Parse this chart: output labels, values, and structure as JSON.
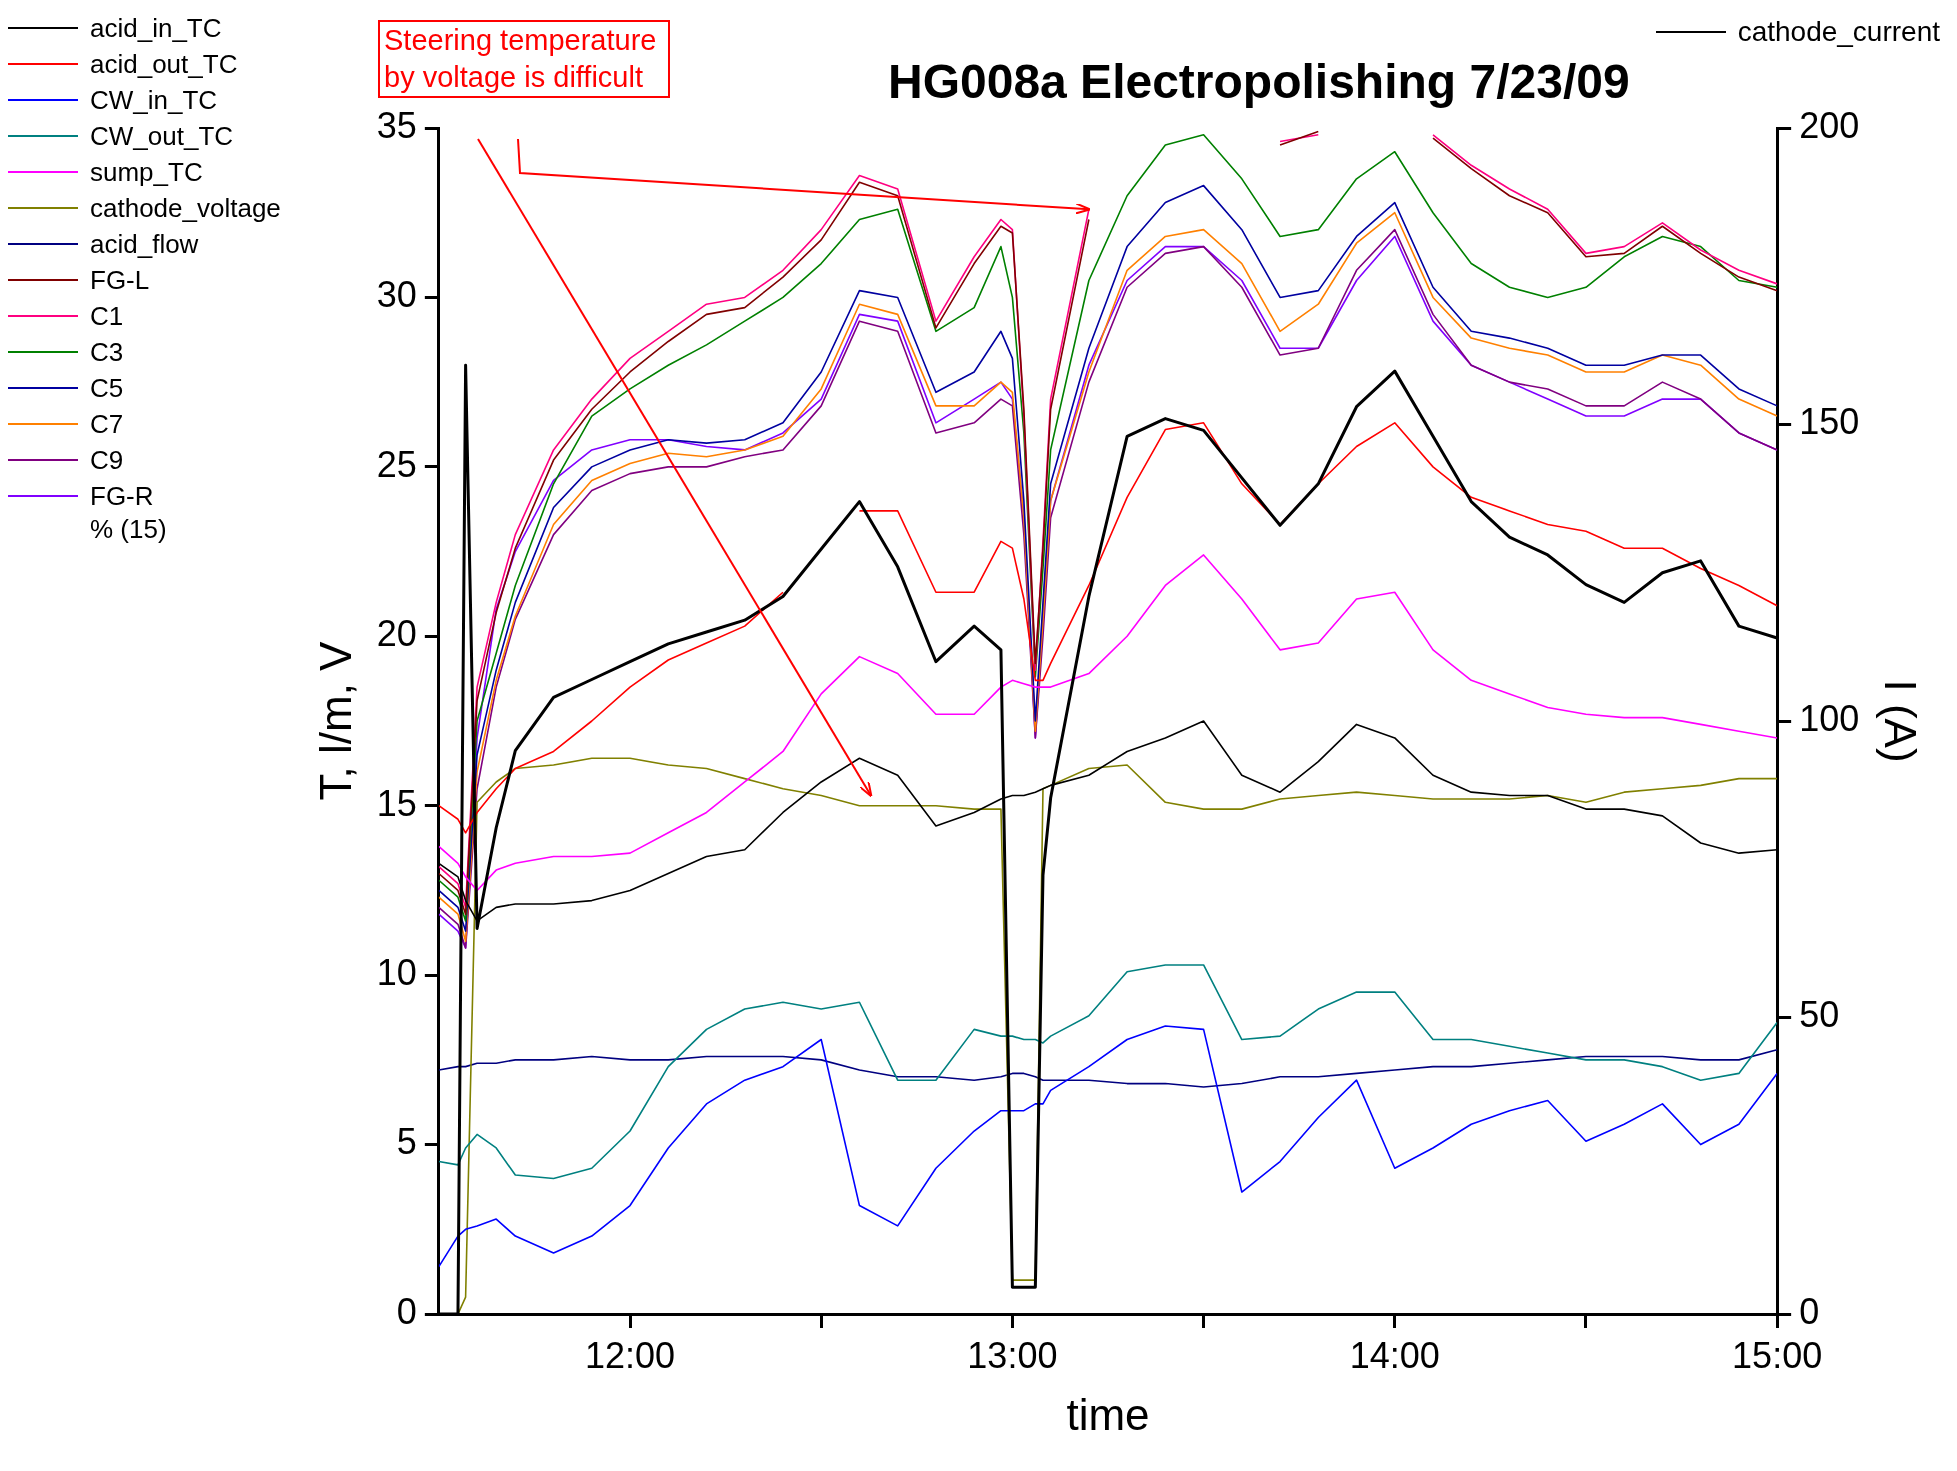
{
  "chart_data": {
    "type": "line",
    "title": "HG008a Electropolishing 7/23/09",
    "xlabel": "time",
    "ylabel": "T, l/m, V",
    "y2label": "I (A)",
    "annotations": [
      "Steering temperature by voltage is difficult",
      "% (15)"
    ],
    "x": [
      11.5,
      11.55,
      11.57,
      11.6,
      11.65,
      11.7,
      11.8,
      11.9,
      12.0,
      12.1,
      12.2,
      12.3,
      12.4,
      12.5,
      12.6,
      12.7,
      12.8,
      12.9,
      12.97,
      13.0,
      13.03,
      13.06,
      13.08,
      13.1,
      13.2,
      13.3,
      13.4,
      13.5,
      13.6,
      13.7,
      13.8,
      13.9,
      14.0,
      14.1,
      14.2,
      14.3,
      14.4,
      14.5,
      14.6,
      14.7,
      14.8,
      14.9,
      15.0
    ],
    "xlim": [
      11.5,
      15
    ],
    "xticks": [
      {
        "value": 12,
        "label": "12:00"
      },
      {
        "value": 12.5,
        "label": null
      },
      {
        "value": 13,
        "label": "13:00"
      },
      {
        "value": 13.5,
        "label": null
      },
      {
        "value": 14,
        "label": "14:00"
      },
      {
        "value": 14.5,
        "label": null
      },
      {
        "value": 15,
        "label": "15:00"
      }
    ],
    "ylim": [
      0,
      35
    ],
    "yticks": [
      0,
      5,
      10,
      15,
      20,
      25,
      30,
      35
    ],
    "y2lim": [
      0,
      200
    ],
    "y2ticks": [
      0,
      50,
      100,
      150,
      200
    ],
    "grid": false,
    "legend": "top left",
    "series": [
      {
        "name": "acid_in_TC",
        "color": "#000000",
        "values": [
          13.3,
          12.9,
          12.2,
          11.6,
          12.0,
          12.1,
          12.1,
          12.2,
          12.5,
          13.0,
          13.5,
          13.7,
          14.8,
          15.7,
          16.4,
          15.9,
          14.4,
          14.8,
          15.2,
          15.3,
          15.3,
          15.4,
          15.5,
          15.6,
          15.9,
          16.6,
          17.0,
          17.5,
          15.9,
          15.4,
          16.3,
          17.4,
          17.0,
          15.9,
          15.4,
          15.3,
          15.3,
          14.9,
          14.9,
          14.7,
          13.9,
          13.6,
          13.7
        ]
      },
      {
        "name": "acid_out_TC",
        "color": "#ff0000",
        "values": [
          15.0,
          14.6,
          14.2,
          14.8,
          15.5,
          16.1,
          16.6,
          17.5,
          18.5,
          19.3,
          19.8,
          20.3,
          21.3,
          null,
          23.7,
          23.7,
          21.3,
          21.3,
          22.8,
          22.6,
          21.1,
          18.7,
          18.7,
          19.2,
          21.5,
          24.1,
          26.1,
          26.3,
          24.5,
          23.3,
          24.5,
          25.6,
          26.3,
          25.0,
          24.1,
          23.7,
          23.3,
          23.1,
          22.6,
          22.6,
          22.0,
          21.5,
          20.9
        ]
      },
      {
        "name": "CW_in_TC",
        "color": "#0000ff",
        "values": [
          1.4,
          2.3,
          2.5,
          2.6,
          2.8,
          2.3,
          1.8,
          2.3,
          3.2,
          4.9,
          6.2,
          6.9,
          7.3,
          8.1,
          3.2,
          2.6,
          4.3,
          5.4,
          6.0,
          6.0,
          6.0,
          6.2,
          6.2,
          6.6,
          7.3,
          8.1,
          8.5,
          8.4,
          3.6,
          4.5,
          5.8,
          6.9,
          4.3,
          4.9,
          5.6,
          6.0,
          6.3,
          5.1,
          5.6,
          6.2,
          5.0,
          5.6,
          7.1
        ]
      },
      {
        "name": "CW_out_TC",
        "color": "#008080",
        "values": [
          4.5,
          4.4,
          4.9,
          5.3,
          4.9,
          4.1,
          4.0,
          4.3,
          5.4,
          7.3,
          8.4,
          9.0,
          9.2,
          9.0,
          9.2,
          6.9,
          6.9,
          8.4,
          8.2,
          8.2,
          8.1,
          8.1,
          8.0,
          8.2,
          8.8,
          10.1,
          10.3,
          10.3,
          8.1,
          8.2,
          9.0,
          9.5,
          9.5,
          8.1,
          8.1,
          7.9,
          7.7,
          7.5,
          7.5,
          7.3,
          6.9,
          7.1,
          8.6
        ]
      },
      {
        "name": "sump_TC",
        "color": "#ff00ff",
        "values": [
          13.8,
          13.3,
          12.9,
          12.5,
          13.1,
          13.3,
          13.5,
          13.5,
          13.6,
          14.2,
          14.8,
          15.7,
          16.6,
          18.3,
          19.4,
          18.9,
          17.7,
          17.7,
          18.5,
          18.7,
          18.6,
          18.5,
          18.5,
          18.5,
          18.9,
          20.0,
          21.5,
          22.4,
          21.1,
          19.6,
          19.8,
          21.1,
          21.3,
          19.6,
          18.7,
          18.3,
          17.9,
          17.7,
          17.6,
          17.6,
          17.4,
          17.2,
          17.0
        ]
      },
      {
        "name": "cathode_voltage",
        "color": "#808000",
        "values": [
          0,
          0,
          0.5,
          15.1,
          15.7,
          16.1,
          16.2,
          16.4,
          16.4,
          16.2,
          16.1,
          15.8,
          15.5,
          15.3,
          15.0,
          15.0,
          15.0,
          14.9,
          14.9,
          1.0,
          1.0,
          1.0,
          15.5,
          15.6,
          16.1,
          16.2,
          15.1,
          14.9,
          14.9,
          15.2,
          15.3,
          15.4,
          15.3,
          15.2,
          15.2,
          15.2,
          15.3,
          15.1,
          15.4,
          15.5,
          15.6,
          15.8,
          15.8
        ]
      },
      {
        "name": "acid_flow",
        "color": "#000080",
        "values": [
          7.2,
          7.3,
          7.3,
          7.4,
          7.4,
          7.5,
          7.5,
          7.6,
          7.5,
          7.5,
          7.6,
          7.6,
          7.6,
          7.5,
          7.2,
          7.0,
          7.0,
          6.9,
          7.0,
          7.1,
          7.1,
          7.0,
          6.9,
          6.9,
          6.9,
          6.8,
          6.8,
          6.7,
          6.8,
          7.0,
          7.0,
          7.1,
          7.2,
          7.3,
          7.3,
          7.4,
          7.5,
          7.6,
          7.6,
          7.6,
          7.5,
          7.5,
          7.8
        ]
      },
      {
        "name": "FG-L",
        "color": "#800000",
        "values": [
          13.0,
          12.5,
          11.8,
          18.1,
          20.7,
          22.6,
          25.2,
          26.7,
          27.8,
          28.7,
          29.5,
          29.7,
          30.6,
          31.7,
          33.4,
          33.0,
          29.1,
          31.0,
          32.1,
          31.9,
          26.7,
          19.2,
          22.6,
          26.7,
          32.3,
          null,
          null,
          null,
          null,
          34.5,
          34.9,
          null,
          null,
          34.7,
          33.8,
          33.0,
          32.5,
          31.2,
          31.3,
          32.1,
          31.3,
          30.6,
          30.2
        ]
      },
      {
        "name": "C1",
        "color": "#ff0080",
        "values": [
          13.2,
          12.7,
          12.0,
          18.5,
          21.0,
          23.0,
          25.5,
          27.0,
          28.2,
          29.0,
          29.8,
          30.0,
          30.8,
          32.0,
          33.6,
          33.2,
          29.3,
          31.2,
          32.3,
          32.0,
          26.5,
          19.0,
          22.8,
          27.0,
          32.6,
          null,
          null,
          null,
          null,
          34.6,
          34.8,
          null,
          null,
          34.8,
          33.9,
          33.2,
          32.6,
          31.3,
          31.5,
          32.2,
          31.4,
          30.8,
          30.4
        ]
      },
      {
        "name": "C3",
        "color": "#008000",
        "values": [
          12.8,
          12.3,
          11.6,
          17.5,
          19.5,
          21.5,
          24.5,
          26.5,
          27.3,
          28.0,
          28.6,
          29.3,
          30.0,
          31.0,
          32.3,
          32.6,
          29.0,
          29.7,
          31.5,
          30.0,
          26.0,
          18.8,
          22.0,
          25.5,
          30.5,
          33.0,
          34.5,
          34.8,
          33.5,
          31.8,
          32.0,
          33.5,
          34.3,
          32.5,
          31.0,
          30.3,
          30.0,
          30.3,
          31.2,
          31.8,
          31.5,
          30.5,
          30.3
        ]
      },
      {
        "name": "C5",
        "color": "#0000a0",
        "values": [
          12.5,
          12.0,
          11.3,
          16.5,
          19.0,
          21.0,
          23.8,
          25.0,
          25.5,
          25.8,
          25.7,
          25.8,
          26.3,
          27.8,
          30.2,
          30.0,
          27.2,
          27.8,
          29.0,
          28.2,
          24.0,
          17.5,
          21.0,
          24.5,
          28.5,
          31.5,
          32.8,
          33.3,
          32.0,
          30.0,
          30.2,
          31.8,
          32.8,
          30.3,
          29.0,
          28.8,
          28.5,
          28.0,
          28.0,
          28.3,
          28.3,
          27.3,
          26.8
        ]
      },
      {
        "name": "C7",
        "color": "#ff8000",
        "values": [
          12.3,
          11.8,
          11.0,
          16.0,
          18.7,
          20.6,
          23.3,
          24.6,
          25.1,
          25.4,
          25.3,
          25.5,
          25.9,
          27.3,
          29.8,
          29.5,
          26.8,
          26.8,
          27.5,
          27.2,
          23.5,
          17.2,
          20.5,
          24.0,
          27.8,
          30.8,
          31.8,
          32.0,
          31.0,
          29.0,
          29.8,
          31.6,
          32.5,
          30.0,
          28.8,
          28.5,
          28.3,
          27.8,
          27.8,
          28.3,
          28.0,
          27.0,
          26.5
        ]
      },
      {
        "name": "C9",
        "color": "#800080",
        "values": [
          12.0,
          11.5,
          10.8,
          15.5,
          18.5,
          20.5,
          23.0,
          24.3,
          24.8,
          25.0,
          25.0,
          25.3,
          25.5,
          26.8,
          29.3,
          29.0,
          26.0,
          26.3,
          27.0,
          26.8,
          23.0,
          17.0,
          20.0,
          23.5,
          27.5,
          30.3,
          31.3,
          31.5,
          30.3,
          28.3,
          28.5,
          30.8,
          32.0,
          29.5,
          28.0,
          27.5,
          27.3,
          26.8,
          26.8,
          27.5,
          27.0,
          26.0,
          25.5
        ]
      },
      {
        "name": "FG-R",
        "color": "#8000ff",
        "values": [
          11.8,
          11.3,
          10.8,
          17.0,
          20.8,
          22.5,
          24.6,
          25.5,
          25.8,
          25.8,
          25.6,
          25.5,
          26.0,
          27.0,
          29.5,
          29.3,
          26.3,
          27.0,
          27.5,
          27.0,
          23.5,
          17.0,
          20.5,
          24.0,
          28.0,
          30.5,
          31.5,
          31.5,
          30.5,
          28.5,
          28.5,
          30.5,
          31.8,
          29.3,
          28.0,
          27.5,
          27.0,
          26.5,
          26.5,
          27.0,
          27.0,
          26.0,
          25.5
        ]
      },
      {
        "name": "cathode_current",
        "color": "#000000",
        "axis": "y2",
        "values": [
          0,
          0,
          160,
          65,
          82,
          95,
          104,
          107,
          110,
          113,
          115,
          117,
          121,
          129,
          137,
          126,
          110,
          116,
          112,
          4.5,
          4.5,
          4.5,
          74,
          87,
          121,
          148,
          151,
          149,
          141,
          133,
          140,
          153,
          159,
          148,
          137,
          131,
          128,
          123,
          120,
          125,
          127,
          116,
          114
        ]
      }
    ]
  }
}
